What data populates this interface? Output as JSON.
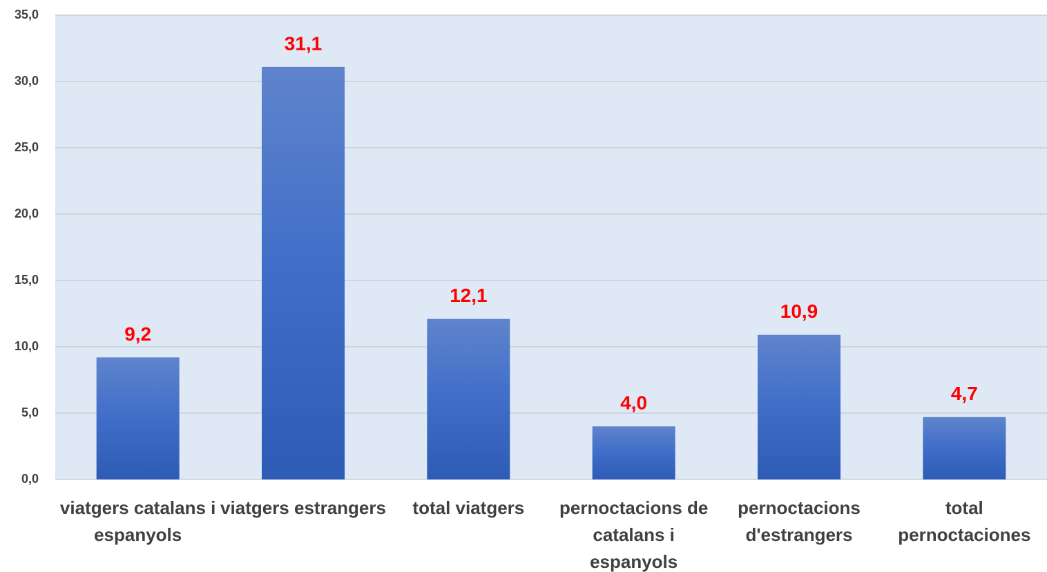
{
  "chart_data": {
    "type": "bar",
    "categories": [
      "viatgers catalans i espanyols",
      "viatgers estrangers",
      "total viatgers",
      "pernoctacions de catalans i espanyols",
      "pernoctacions d'estrangers",
      "total pernoctaciones"
    ],
    "values": [
      9.2,
      31.1,
      12.1,
      4.0,
      10.9,
      4.7
    ],
    "value_labels": [
      "9,2",
      "31,1",
      "12,1",
      "4,0",
      "10,9",
      "4,7"
    ],
    "color": "#4472c4",
    "ylim": [
      0,
      35
    ],
    "yticks": [
      {
        "value": 0,
        "label": "0,0"
      },
      {
        "value": 5,
        "label": "5,0"
      },
      {
        "value": 10,
        "label": "10,0"
      },
      {
        "value": 15,
        "label": "15,0"
      },
      {
        "value": 20,
        "label": "20,0"
      },
      {
        "value": 25,
        "label": "25,0"
      },
      {
        "value": 30,
        "label": "30,0"
      },
      {
        "value": 35,
        "label": "35,0"
      }
    ],
    "grid": true
  }
}
